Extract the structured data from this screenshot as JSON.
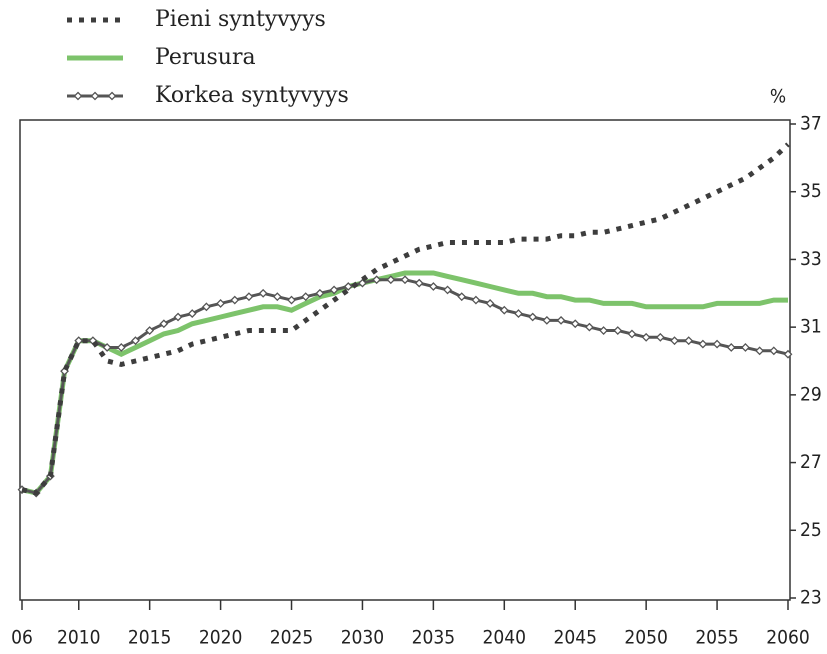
{
  "chart_data": {
    "type": "line",
    "y_label": "%",
    "x": [
      2006,
      2007,
      2008,
      2009,
      2010,
      2011,
      2012,
      2013,
      2014,
      2015,
      2016,
      2017,
      2018,
      2019,
      2020,
      2021,
      2022,
      2023,
      2024,
      2025,
      2026,
      2027,
      2028,
      2029,
      2030,
      2031,
      2032,
      2033,
      2034,
      2035,
      2036,
      2037,
      2038,
      2039,
      2040,
      2041,
      2042,
      2043,
      2044,
      2045,
      2046,
      2047,
      2048,
      2049,
      2050,
      2051,
      2052,
      2053,
      2054,
      2055,
      2056,
      2057,
      2058,
      2059,
      2060
    ],
    "xlim": [
      2006,
      2060
    ],
    "xticks": [
      {
        "value": 2006,
        "label": "06"
      },
      2010,
      2015,
      2020,
      2025,
      2030,
      2035,
      2040,
      2045,
      2050,
      2055,
      2060
    ],
    "ylim": [
      23,
      37
    ],
    "yticks": [
      23,
      25,
      27,
      29,
      31,
      33,
      35,
      37
    ],
    "series": [
      {
        "name": "Pieni syntyvyys",
        "color": "#3d3d3d",
        "line_style": "dotted",
        "markers": false,
        "values": [
          26.2,
          26.1,
          26.6,
          29.7,
          30.6,
          30.6,
          30.0,
          29.9,
          30.0,
          30.1,
          30.2,
          30.3,
          30.5,
          30.6,
          30.7,
          30.8,
          30.9,
          30.9,
          30.9,
          30.9,
          31.2,
          31.5,
          31.8,
          32.1,
          32.4,
          32.7,
          32.9,
          33.1,
          33.3,
          33.4,
          33.5,
          33.5,
          33.5,
          33.5,
          33.5,
          33.6,
          33.6,
          33.6,
          33.7,
          33.7,
          33.8,
          33.8,
          33.9,
          34.0,
          34.1,
          34.2,
          34.4,
          34.6,
          34.8,
          35.0,
          35.2,
          35.4,
          35.7,
          36.0,
          36.4
        ]
      },
      {
        "name": "Perusura",
        "color": "#7dc36b",
        "line_style": "solid",
        "markers": false,
        "values": [
          26.2,
          26.1,
          26.6,
          29.7,
          30.6,
          30.6,
          30.4,
          30.2,
          30.4,
          30.6,
          30.8,
          30.9,
          31.1,
          31.2,
          31.3,
          31.4,
          31.5,
          31.6,
          31.6,
          31.5,
          31.7,
          31.9,
          32.0,
          32.2,
          32.3,
          32.4,
          32.5,
          32.6,
          32.6,
          32.6,
          32.5,
          32.4,
          32.3,
          32.2,
          32.1,
          32.0,
          32.0,
          31.9,
          31.9,
          31.8,
          31.8,
          31.7,
          31.7,
          31.7,
          31.6,
          31.6,
          31.6,
          31.6,
          31.6,
          31.7,
          31.7,
          31.7,
          31.7,
          31.8,
          31.8
        ]
      },
      {
        "name": "Korkea syntyvyys",
        "color": "#555555",
        "line_style": "solid",
        "markers": true,
        "values": [
          26.2,
          26.1,
          26.6,
          29.7,
          30.6,
          30.6,
          30.4,
          30.4,
          30.6,
          30.9,
          31.1,
          31.3,
          31.4,
          31.6,
          31.7,
          31.8,
          31.9,
          32.0,
          31.9,
          31.8,
          31.9,
          32.0,
          32.1,
          32.2,
          32.3,
          32.4,
          32.4,
          32.4,
          32.3,
          32.2,
          32.1,
          31.9,
          31.8,
          31.7,
          31.5,
          31.4,
          31.3,
          31.2,
          31.2,
          31.1,
          31.0,
          30.9,
          30.9,
          30.8,
          30.7,
          30.7,
          30.6,
          30.6,
          30.5,
          30.5,
          30.4,
          30.4,
          30.3,
          30.3,
          30.2
        ]
      }
    ]
  }
}
